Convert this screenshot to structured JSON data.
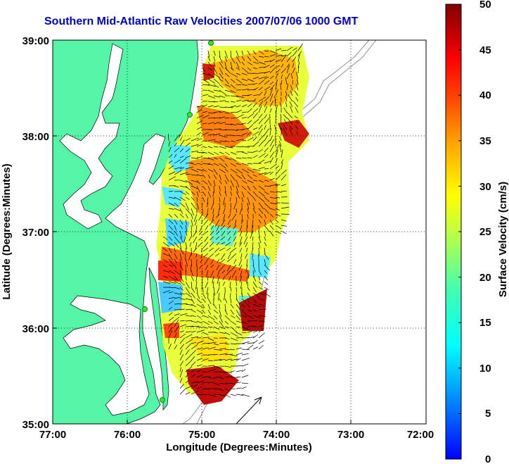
{
  "title": "Southern Mid-Atlantic Raw Velocities 2007/07/06 1000 GMT",
  "xaxis": {
    "label": "Longitude (Degrees:Minutes)",
    "ticks": [
      "77:00",
      "76:00",
      "75:00",
      "74:00",
      "73:00",
      "72:00"
    ]
  },
  "yaxis": {
    "label": "Latitude (Degrees:Minutes)",
    "ticks": [
      "39:00",
      "38:00",
      "37:00",
      "36:00",
      "35:00"
    ]
  },
  "colorbar": {
    "label": "Surface Velocity (cm/s)",
    "ticks": [
      "50",
      "45",
      "40",
      "35",
      "30",
      "25",
      "20",
      "15",
      "10",
      "5",
      "0"
    ],
    "min": 0,
    "max": 50
  },
  "colors": {
    "land": "#55f5a8",
    "ocean": "#ffffff",
    "title": "#0000cc",
    "stations": "#2ee82e"
  },
  "chart_data": {
    "type": "heatmap",
    "xlim": [
      -77,
      -72
    ],
    "ylim": [
      35,
      39
    ],
    "grid": true,
    "field": "surface current velocity vectors colored by speed (cm/s)"
  }
}
